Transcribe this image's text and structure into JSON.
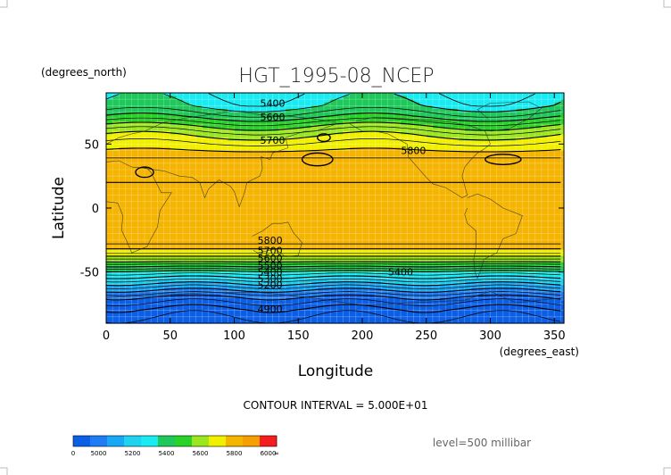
{
  "chart_data": {
    "type": "heatmap",
    "title": "HGT_1995-08_NCEP",
    "xlabel": "Longitude",
    "ylabel": "Latitude",
    "x_units": "(degrees_east)",
    "y_units": "(degrees_north)",
    "xlim": [
      0,
      357.5
    ],
    "ylim": [
      -90,
      90
    ],
    "x_ticks": [
      0,
      50,
      100,
      150,
      200,
      250,
      300,
      350
    ],
    "y_ticks": [
      50,
      0,
      -50
    ],
    "contour_interval_text": "CONTOUR INTERVAL = 5.000E+01",
    "level_text": "level=500 millibar",
    "contour_labels": [
      {
        "text": "5400",
        "lon": 130,
        "lat": 82
      },
      {
        "text": "5600",
        "lon": 130,
        "lat": 71
      },
      {
        "text": "5700",
        "lon": 130,
        "lat": 53
      },
      {
        "text": "5800",
        "lon": 240,
        "lat": 45
      },
      {
        "text": "5800",
        "lon": 128,
        "lat": -25
      },
      {
        "text": "5700",
        "lon": 128,
        "lat": -33
      },
      {
        "text": "5600",
        "lon": 128,
        "lat": -39
      },
      {
        "text": "5500",
        "lon": 128,
        "lat": -45
      },
      {
        "text": "5400",
        "lon": 128,
        "lat": -50
      },
      {
        "text": "5300",
        "lon": 128,
        "lat": -55
      },
      {
        "text": "5200",
        "lon": 128,
        "lat": -60
      },
      {
        "text": "5400",
        "lon": 230,
        "lat": -50
      },
      {
        "text": "4900",
        "lon": 128,
        "lat": -79
      }
    ],
    "bands": [
      {
        "min": null,
        "max": 5000,
        "color": "#0a5fe6"
      },
      {
        "min": 5000,
        "max": 5100,
        "color": "#1e7df5"
      },
      {
        "min": 5100,
        "max": 5200,
        "color": "#18a8f5"
      },
      {
        "min": 5200,
        "max": 5300,
        "color": "#1ed2f0"
      },
      {
        "min": 5300,
        "max": 5400,
        "color": "#18ecf2"
      },
      {
        "min": 5400,
        "max": 5500,
        "color": "#1ec85a"
      },
      {
        "min": 5500,
        "max": 5600,
        "color": "#28d228"
      },
      {
        "min": 5600,
        "max": 5700,
        "color": "#9be61e"
      },
      {
        "min": 5700,
        "max": 5800,
        "color": "#f0f000"
      },
      {
        "min": 5800,
        "max": 5900,
        "color": "#f5b400"
      },
      {
        "min": 5900,
        "max": 6000,
        "color": "#f5a000"
      },
      {
        "min": 6000,
        "max": null,
        "color": "#f51e1e"
      }
    ],
    "colorbar_labels": [
      "0",
      "5000",
      "5200",
      "5400",
      "5600",
      "5800",
      "6000",
      "∞"
    ]
  }
}
